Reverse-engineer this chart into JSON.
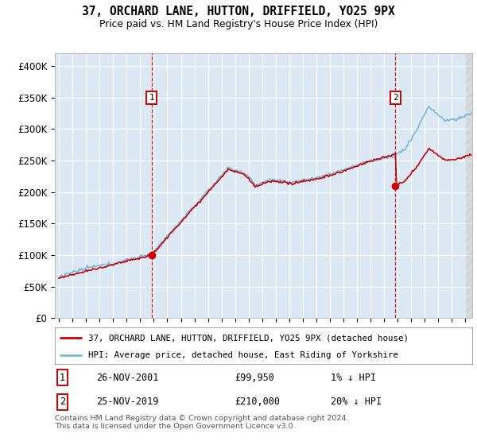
{
  "title": "37, ORCHARD LANE, HUTTON, DRIFFIELD, YO25 9PX",
  "subtitle": "Price paid vs. HM Land Registry's House Price Index (HPI)",
  "background_color": "#dce9f5",
  "plot_bg_color": "#dce9f5",
  "hpi_color": "#7ab8d9",
  "price_color": "#cc0000",
  "sale1_price": 99950,
  "sale2_price": 210000,
  "sale1_factor": 0.99,
  "sale2_factor": 0.8,
  "ylabel_ticks": [
    "£0",
    "£50K",
    "£100K",
    "£150K",
    "£200K",
    "£250K",
    "£300K",
    "£350K",
    "£400K"
  ],
  "ytick_vals": [
    0,
    50000,
    100000,
    150000,
    200000,
    250000,
    300000,
    350000,
    400000
  ],
  "xlim_start": 1994.7,
  "xlim_end": 2025.5,
  "ylim_min": 0,
  "ylim_max": 420000,
  "legend_line1": "37, ORCHARD LANE, HUTTON, DRIFFIELD, YO25 9PX (detached house)",
  "legend_line2": "HPI: Average price, detached house, East Riding of Yorkshire",
  "note1_date": "26-NOV-2001",
  "note1_price": "£99,950",
  "note1_hpi": "1% ↓ HPI",
  "note2_date": "25-NOV-2019",
  "note2_price": "£210,000",
  "note2_hpi": "20% ↓ HPI",
  "footer": "Contains HM Land Registry data © Crown copyright and database right 2024.\nThis data is licensed under the Open Government Licence v3.0."
}
